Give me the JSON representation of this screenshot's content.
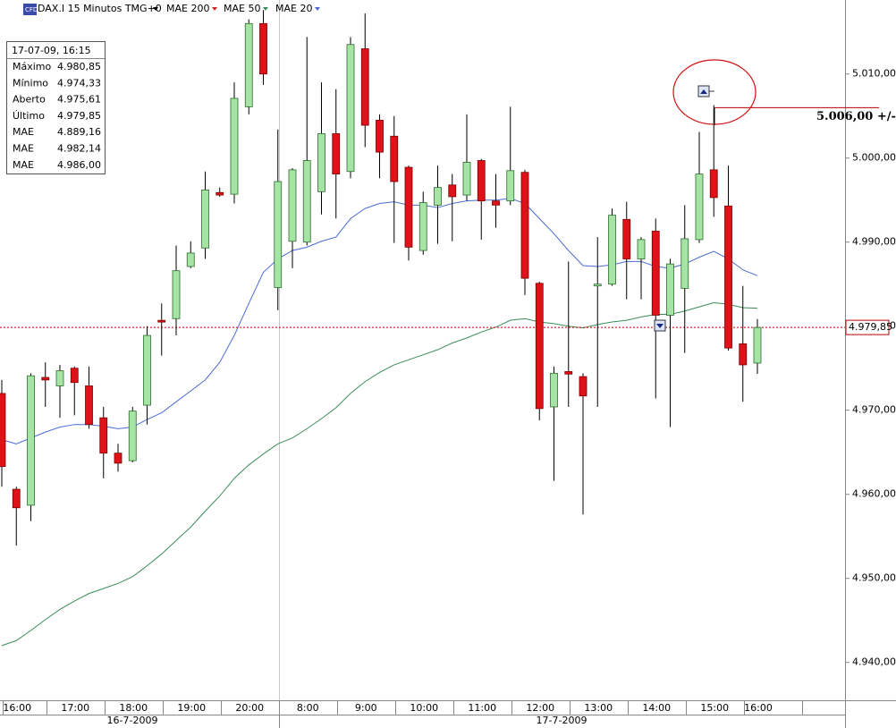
{
  "chart_data": {
    "type": "candlestick",
    "title": "DAX.I 15 Minutos TMG+0",
    "categories": [
      null,
      "16:00",
      null,
      null,
      null,
      "17:00",
      null,
      null,
      null,
      "18:00",
      null,
      null,
      null,
      "19:00",
      null,
      null,
      null,
      "20:00",
      null,
      null,
      null,
      "8:00",
      null,
      null,
      null,
      "9:00",
      null,
      null,
      null,
      "10:00",
      null,
      null,
      null,
      "11:00",
      null,
      null,
      null,
      "12:00",
      null,
      null,
      null,
      "13:00",
      null,
      null,
      null,
      "14:00",
      null,
      null,
      null,
      "15:00",
      null,
      null,
      "16:00"
    ],
    "dates": [
      "16-7-2009",
      "17-7-2009"
    ],
    "open": [
      4972.0,
      4960.6,
      4958.7,
      4973.9,
      4972.9,
      4975.0,
      4972.9,
      4969.1,
      4964.9,
      4964.0,
      4970.6,
      4980.7,
      4980.9,
      4987.1,
      4989.3,
      4995.9,
      4995.7,
      5006.1,
      5016.0,
      4984.6,
      4990.1,
      4990.0,
      4996.0,
      5002.9,
      4998.4,
      5013.0,
      5004.5,
      5002.6,
      4998.9,
      4989.0,
      4994.4,
      4996.8,
      4995.6,
      4999.7,
      4994.9,
      4994.9,
      4998.3,
      4985.1,
      4970.4,
      4974.6,
      4974.0,
      4984.8,
      4985.0,
      4992.7,
      4988.0,
      4991.3,
      4981.3,
      4984.5,
      4990.3,
      4998.6,
      4994.3,
      4977.9,
      4975.61
    ],
    "high": [
      4973.6,
      4960.9,
      4974.4,
      4975.7,
      4975.4,
      4975.2,
      4975.2,
      4970.4,
      4966.0,
      4970.4,
      4980.0,
      4982.7,
      4989.6,
      4990.1,
      4998.4,
      4996.5,
      5009.0,
      5016.5,
      5017.6,
      5003.4,
      4998.8,
      5014.4,
      5009.0,
      5008.2,
      5014.4,
      5017.2,
      5005.2,
      5005.0,
      4999.1,
      4996.0,
      4999.1,
      4998.1,
      5005.2,
      4999.9,
      4998.1,
      5006.1,
      4998.6,
      4985.3,
      4975.2,
      4987.7,
      4974.4,
      4990.6,
      4994.0,
      4994.8,
      4990.6,
      4992.8,
      4988.0,
      4994.4,
      5003.1,
      5006.3,
      4999.1,
      4984.8,
      4980.85
    ],
    "low": [
      4960.9,
      4953.9,
      4956.8,
      4970.4,
      4969.1,
      4969.4,
      4967.8,
      4961.9,
      4962.7,
      4963.8,
      4968.3,
      4976.5,
      4978.9,
      4986.9,
      4988.0,
      4995.4,
      4994.6,
      5005.2,
      5008.7,
      4981.9,
      4986.9,
      4989.6,
      4993.3,
      4992.8,
      4997.6,
      5001.3,
      4997.6,
      4989.9,
      4987.8,
      4988.5,
      4989.8,
      4990.1,
      4994.9,
      4990.3,
      4991.7,
      4994.4,
      4983.7,
      4968.8,
      4961.6,
      4970.4,
      4957.6,
      4970.4,
      4984.8,
      4983.2,
      4983.2,
      4971.4,
      4968.0,
      4976.8,
      4989.9,
      4993.0,
      4977.1,
      4971.0,
      4974.33
    ],
    "close": [
      4963.3,
      4958.4,
      4974.1,
      4973.6,
      4974.7,
      4973.3,
      4968.3,
      4964.9,
      4963.7,
      4969.9,
      4978.9,
      4980.5,
      4986.6,
      4988.7,
      4996.2,
      4995.6,
      5007.1,
      5016.0,
      5010.0,
      4997.2,
      4998.6,
      4999.7,
      5002.9,
      4998.1,
      5013.5,
      5003.9,
      5000.7,
      4997.2,
      4989.4,
      4994.7,
      4996.5,
      4995.4,
      4999.5,
      4994.9,
      4994.4,
      4998.5,
      4985.7,
      4970.2,
      4974.4,
      4974.3,
      4971.7,
      4985.0,
      4993.2,
      4988.0,
      4990.3,
      4981.3,
      4987.4,
      4990.4,
      4998.1,
      4995.3,
      4977.4,
      4975.4,
      4979.85
    ],
    "up_color": "#a6e4a6",
    "down_color": "#df1119",
    "series": [
      {
        "name": "MAE 200",
        "color": "#d42020"
      },
      {
        "name": "MAE 50",
        "color": "#3c8c5a",
        "values": [
          4942.0,
          4942.6,
          4943.8,
          4945.1,
          4946.3,
          4947.3,
          4948.2,
          4948.8,
          4949.4,
          4950.2,
          4951.5,
          4952.9,
          4954.5,
          4956.1,
          4958.0,
          4959.8,
          4961.9,
          4963.5,
          4964.8,
          4966.0,
          4966.7,
          4967.8,
          4969.0,
          4970.3,
          4972.0,
          4973.4,
          4974.5,
          4975.4,
          4976.0,
          4976.6,
          4977.2,
          4978.0,
          4978.6,
          4979.3,
          4979.9,
          4980.7,
          4980.9,
          4980.5,
          4980.3,
          4980.0,
          4979.8,
          4980.2,
          4980.5,
          4980.7,
          4981.1,
          4981.4,
          4981.4,
          4981.8,
          4982.3,
          4982.8,
          4982.6,
          4982.2,
          4982.14
        ]
      },
      {
        "name": "MAE 20",
        "color": "#4a6cd4",
        "values": [
          4966.5,
          4966.0,
          4966.7,
          4967.4,
          4968.0,
          4968.3,
          4968.3,
          4968.1,
          4967.8,
          4968.0,
          4968.9,
          4969.7,
          4971.0,
          4972.3,
          4973.6,
          4975.7,
          4978.9,
          4982.7,
          4986.4,
          4988.0,
          4989.0,
          4989.4,
          4990.1,
          4990.6,
          4992.8,
          4994.0,
          4994.6,
          4994.8,
          4994.4,
          4994.4,
          4994.1,
          4994.6,
          4994.9,
          4995.0,
          4995.0,
          4995.2,
          4994.6,
          4992.8,
          4991.0,
          4989.0,
          4987.2,
          4987.1,
          4987.3,
          4987.7,
          4987.7,
          4987.1,
          4986.9,
          4987.4,
          4988.2,
          4988.9,
          4988.0,
          4986.7,
          4986.0
        ]
      }
    ],
    "ylim": [
      4935.5,
      5018.8
    ],
    "yticks": [
      {
        "value": 4940,
        "label": "4.940,00"
      },
      {
        "value": 4950,
        "label": "4.950,00"
      },
      {
        "value": 4960,
        "label": "4.960,00"
      },
      {
        "value": 4970,
        "label": "4.970,00"
      },
      {
        "value": 4980,
        "label": "4.980,00"
      },
      {
        "value": 4990,
        "label": "4.990,00"
      },
      {
        "value": 5000,
        "label": "5.000,00"
      },
      {
        "value": 5010,
        "label": "5.010,00"
      }
    ],
    "last_price": {
      "value": 4979.85,
      "label": "4.979,85"
    },
    "order": {
      "value": 5006,
      "label": "5.006,00 +/-"
    }
  },
  "info_box": {
    "title": "17-07-09, 16:15",
    "rows": [
      [
        "Máximo",
        "4.980,85"
      ],
      [
        "Mínimo",
        "4.974,33"
      ],
      [
        "Aberto",
        "4.975,61"
      ],
      [
        "Último",
        "4.979,85"
      ],
      [
        "MAE",
        "4.889,16"
      ],
      [
        "MAE",
        "4.982,14"
      ],
      [
        "MAE",
        "4.986,00"
      ]
    ]
  }
}
